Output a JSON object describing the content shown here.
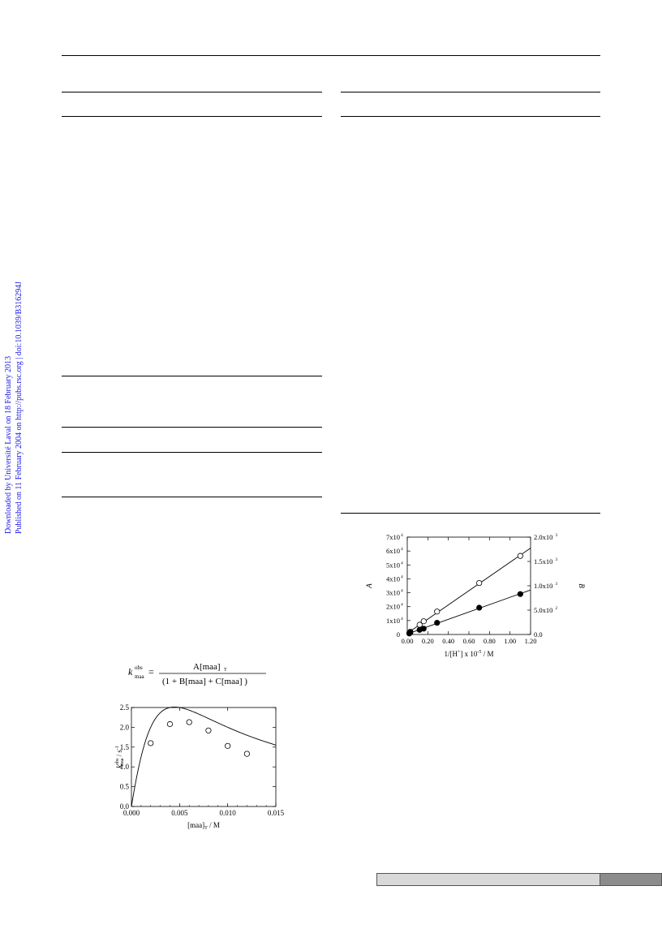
{
  "sidebar": {
    "line1": "Downloaded by Université Laval on 18 February 2013",
    "line2": "Published on 11 February 2004 on http://pubs.rsc.org | doi:10.1039/B316294J",
    "color": "#1a1ae6"
  },
  "equation": {
    "lhs": "k",
    "lhs_sup": "obs",
    "lhs_sub": "maa",
    "num": "A[maa]",
    "num_sub": "T",
    "den": "(1 + B[maa]  + C[maa]  )"
  },
  "chart_data": [
    {
      "type": "scatter",
      "xlabel": "[maa]",
      "xlabel_sub": "T",
      "xlabel_unit": " / M",
      "ylabel": "k",
      "ylabel_sup": "obs",
      "ylabel_sub": "maa",
      "ylabel_unit": " / s",
      "ylabel_unit_sup": "-1",
      "xlim": [
        0,
        0.015
      ],
      "ylim": [
        0,
        2.5
      ],
      "xticks": [
        "0.000",
        "0.005",
        "0.010",
        "0.015"
      ],
      "yticks": [
        "0.0",
        "0.5",
        "1.0",
        "1.5",
        "2.0",
        "2.5"
      ],
      "series": [
        {
          "marker": "open-circle",
          "x": [
            0.002,
            0.004,
            0.006,
            0.008,
            0.01,
            0.012
          ],
          "y": [
            1.6,
            2.08,
            2.13,
            1.92,
            1.53,
            1.33
          ]
        }
      ],
      "fit_curve": true
    },
    {
      "type": "scatter",
      "xlabel": "1/[H",
      "xlabel_sup": "+",
      "xlabel_unit": "] x 10",
      "xlabel_unit_sup": "-5",
      "xlabel_tail": " / M",
      "ylabel_left": "A",
      "ylabel_right": "B",
      "xlim": [
        0,
        1.2
      ],
      "ylim_left": [
        0,
        70000
      ],
      "ylim_right": [
        0,
        2000
      ],
      "xticks": [
        "0.00",
        "0.20",
        "0.40",
        "0.60",
        "0.80",
        "1.00",
        "1.20"
      ],
      "yticks_left": [
        "0",
        "1x10",
        "2x10",
        "3x10",
        "4x10",
        "5x10",
        "6x10",
        "7x10"
      ],
      "yticks_left_sup": "4",
      "yticks_right": [
        "0.0",
        "5.0x10",
        "1.0x10",
        "1.5x10",
        "2.0x10"
      ],
      "yticks_right_sup": [
        "",
        "2",
        "3",
        "3",
        "3"
      ],
      "series": [
        {
          "marker": "open-circle",
          "axis": "left",
          "x": [
            0.02,
            0.03,
            0.12,
            0.16,
            0.29,
            0.7,
            1.1
          ],
          "y": [
            1000,
            2000,
            7000,
            9500,
            16500,
            37000,
            56500
          ]
        },
        {
          "marker": "filled-circle",
          "axis": "right",
          "x": [
            0.02,
            0.03,
            0.12,
            0.16,
            0.29,
            0.7,
            1.1
          ],
          "y": [
            20,
            40,
            95,
            120,
            240,
            550,
            830
          ]
        }
      ]
    }
  ]
}
